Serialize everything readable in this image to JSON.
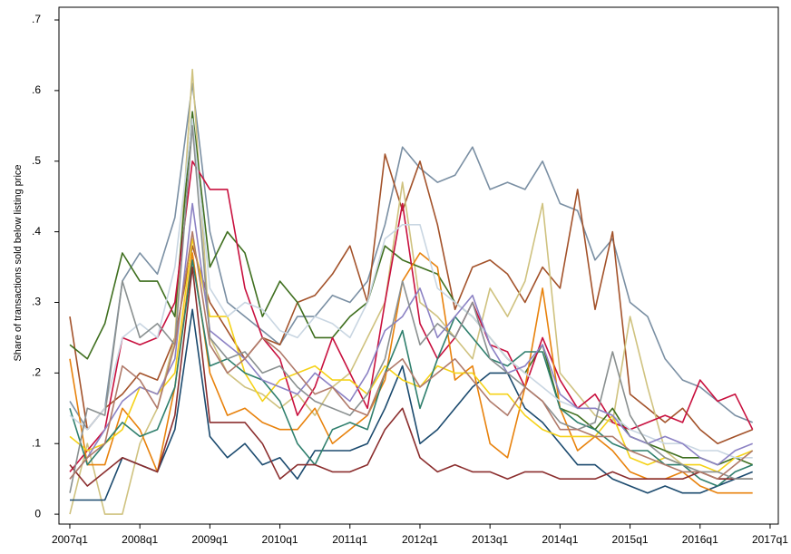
{
  "chart_data": {
    "type": "line",
    "y_label": "Share of transactions sold below listing price",
    "x": [
      2007,
      2007.25,
      2007.5,
      2007.75,
      2008,
      2008.25,
      2008.5,
      2008.75,
      2009,
      2009.25,
      2009.5,
      2009.75,
      2010,
      2010.25,
      2010.5,
      2010.75,
      2011,
      2011.25,
      2011.5,
      2011.75,
      2012,
      2012.25,
      2012.5,
      2012.75,
      2013,
      2013.25,
      2013.5,
      2013.75,
      2014,
      2014.25,
      2014.5,
      2014.75,
      2015,
      2015.25,
      2015.5,
      2015.75,
      2016,
      2016.25,
      2016.5,
      2016.75
    ],
    "xlim": [
      2006.845,
      2017.117
    ],
    "xticks": [
      {
        "value": 2007,
        "label": "2007q1"
      },
      {
        "value": 2008,
        "label": "2008q1"
      },
      {
        "value": 2009,
        "label": "2009q1"
      },
      {
        "value": 2010,
        "label": "2010q1"
      },
      {
        "value": 2011,
        "label": "2011q1"
      },
      {
        "value": 2012,
        "label": "2012q1"
      },
      {
        "value": 2013,
        "label": "2013q1"
      },
      {
        "value": 2014,
        "label": "2014q1"
      },
      {
        "value": 2015,
        "label": "2015q1"
      },
      {
        "value": 2016,
        "label": "2016q1"
      },
      {
        "value": 2017,
        "label": "2017q1"
      }
    ],
    "ylim": [
      -0.014,
      0.718
    ],
    "yticks": [
      0,
      {
        "value": 0.1,
        "label": ".1"
      },
      {
        "value": 0.2,
        "label": ".2"
      },
      {
        "value": 0.3,
        "label": ".3"
      },
      {
        "value": 0.4,
        "label": ".4"
      },
      {
        "value": 0.5,
        "label": ".5"
      },
      {
        "value": 0.6,
        "label": ".6"
      },
      {
        "value": 0.7,
        "label": ".7"
      }
    ],
    "grid": false,
    "series": [
      {
        "color": "#7a8fa3",
        "values": [
          0.16,
          0.12,
          0.15,
          0.33,
          0.37,
          0.34,
          0.42,
          0.61,
          0.4,
          0.3,
          0.28,
          0.26,
          0.24,
          0.28,
          0.28,
          0.31,
          0.3,
          0.33,
          0.41,
          0.52,
          0.49,
          0.47,
          0.48,
          0.52,
          0.46,
          0.47,
          0.46,
          0.5,
          0.44,
          0.43,
          0.36,
          0.39,
          0.3,
          0.28,
          0.22,
          0.19,
          0.18,
          0.16,
          0.14,
          0.13
        ]
      },
      {
        "color": "#a3522a",
        "values": [
          0.28,
          0.12,
          0.15,
          0.17,
          0.2,
          0.19,
          0.25,
          0.38,
          0.3,
          0.26,
          0.22,
          0.25,
          0.24,
          0.3,
          0.31,
          0.34,
          0.38,
          0.3,
          0.51,
          0.43,
          0.5,
          0.41,
          0.29,
          0.35,
          0.36,
          0.34,
          0.3,
          0.35,
          0.32,
          0.46,
          0.29,
          0.4,
          0.17,
          0.15,
          0.13,
          0.15,
          0.12,
          0.1,
          0.11,
          0.12
        ]
      },
      {
        "color": "#cfc27f",
        "values": [
          0.0,
          0.1,
          0.0,
          0.0,
          0.1,
          0.15,
          0.25,
          0.63,
          0.25,
          0.2,
          0.18,
          0.17,
          0.15,
          0.17,
          0.14,
          0.18,
          0.2,
          0.25,
          0.3,
          0.47,
          0.3,
          0.28,
          0.25,
          0.22,
          0.32,
          0.28,
          0.33,
          0.44,
          0.2,
          0.17,
          0.14,
          0.13,
          0.28,
          0.18,
          0.09,
          0.07,
          0.06,
          0.05,
          0.05,
          0.05
        ]
      },
      {
        "color": "#3f6f1f",
        "values": [
          0.24,
          0.22,
          0.27,
          0.37,
          0.33,
          0.33,
          0.28,
          0.57,
          0.35,
          0.4,
          0.37,
          0.28,
          0.33,
          0.3,
          0.25,
          0.25,
          0.28,
          0.3,
          0.38,
          0.36,
          0.35,
          0.34,
          0.3,
          0.28,
          0.25,
          0.22,
          0.2,
          0.24,
          0.15,
          0.14,
          0.12,
          0.15,
          0.11,
          0.1,
          0.09,
          0.08,
          0.08,
          0.07,
          0.08,
          0.07
        ]
      },
      {
        "color": "#c8103e",
        "values": [
          0.06,
          0.09,
          0.12,
          0.25,
          0.24,
          0.25,
          0.3,
          0.5,
          0.46,
          0.46,
          0.32,
          0.25,
          0.22,
          0.14,
          0.18,
          0.25,
          0.2,
          0.15,
          0.3,
          0.44,
          0.27,
          0.22,
          0.25,
          0.3,
          0.24,
          0.23,
          0.18,
          0.25,
          0.19,
          0.15,
          0.17,
          0.13,
          0.12,
          0.13,
          0.14,
          0.13,
          0.19,
          0.16,
          0.17,
          0.12
        ]
      },
      {
        "color": "#1b4a6e",
        "values": [
          0.02,
          0.02,
          0.02,
          0.08,
          0.07,
          0.06,
          0.12,
          0.29,
          0.11,
          0.08,
          0.1,
          0.07,
          0.08,
          0.05,
          0.09,
          0.09,
          0.09,
          0.1,
          0.15,
          0.21,
          0.1,
          0.12,
          0.15,
          0.18,
          0.2,
          0.2,
          0.15,
          0.13,
          0.1,
          0.07,
          0.07,
          0.05,
          0.04,
          0.03,
          0.04,
          0.03,
          0.03,
          0.04,
          0.05,
          0.06
        ]
      },
      {
        "color": "#e8820c",
        "values": [
          0.22,
          0.07,
          0.07,
          0.15,
          0.12,
          0.06,
          0.18,
          0.37,
          0.2,
          0.14,
          0.15,
          0.13,
          0.12,
          0.12,
          0.15,
          0.1,
          0.12,
          0.14,
          0.19,
          0.33,
          0.37,
          0.35,
          0.19,
          0.21,
          0.1,
          0.08,
          0.18,
          0.32,
          0.15,
          0.09,
          0.11,
          0.09,
          0.06,
          0.05,
          0.05,
          0.06,
          0.04,
          0.03,
          0.03,
          0.03
        ]
      },
      {
        "color": "#f5d218",
        "values": [
          0.11,
          0.09,
          0.1,
          0.12,
          0.18,
          0.17,
          0.2,
          0.39,
          0.28,
          0.28,
          0.2,
          0.16,
          0.19,
          0.2,
          0.21,
          0.19,
          0.19,
          0.17,
          0.21,
          0.19,
          0.18,
          0.21,
          0.2,
          0.2,
          0.17,
          0.17,
          0.14,
          0.12,
          0.11,
          0.11,
          0.11,
          0.14,
          0.08,
          0.07,
          0.08,
          0.07,
          0.07,
          0.06,
          0.08,
          0.09
        ]
      },
      {
        "color": "#2f7f6d",
        "values": [
          0.15,
          0.07,
          0.1,
          0.13,
          0.11,
          0.12,
          0.18,
          0.36,
          0.21,
          0.22,
          0.2,
          0.19,
          0.16,
          0.1,
          0.07,
          0.12,
          0.13,
          0.12,
          0.2,
          0.26,
          0.15,
          0.22,
          0.28,
          0.25,
          0.22,
          0.21,
          0.23,
          0.23,
          0.15,
          0.13,
          0.12,
          0.1,
          0.09,
          0.09,
          0.07,
          0.07,
          0.05,
          0.04,
          0.06,
          0.07
        ]
      },
      {
        "color": "#c9d6e2",
        "values": [
          0.14,
          0.12,
          0.15,
          0.25,
          0.27,
          0.25,
          0.35,
          0.56,
          0.32,
          0.28,
          0.3,
          0.29,
          0.26,
          0.25,
          0.28,
          0.27,
          0.25,
          0.3,
          0.39,
          0.41,
          0.41,
          0.32,
          0.3,
          0.28,
          0.25,
          0.22,
          0.2,
          0.18,
          0.16,
          0.15,
          0.15,
          0.14,
          0.12,
          0.11,
          0.1,
          0.1,
          0.09,
          0.09,
          0.08,
          0.08
        ]
      },
      {
        "color": "#8c82c4",
        "values": [
          0.05,
          0.08,
          0.12,
          0.16,
          0.18,
          0.17,
          0.22,
          0.44,
          0.26,
          0.24,
          0.22,
          0.19,
          0.18,
          0.17,
          0.2,
          0.18,
          0.16,
          0.2,
          0.26,
          0.28,
          0.32,
          0.25,
          0.28,
          0.31,
          0.24,
          0.2,
          0.21,
          0.24,
          0.17,
          0.15,
          0.15,
          0.14,
          0.11,
          0.1,
          0.11,
          0.1,
          0.08,
          0.07,
          0.09,
          0.1
        ]
      },
      {
        "color": "#8b2e2e",
        "values": [
          0.07,
          0.04,
          0.06,
          0.08,
          0.07,
          0.06,
          0.14,
          0.35,
          0.13,
          0.13,
          0.13,
          0.1,
          0.05,
          0.07,
          0.07,
          0.06,
          0.06,
          0.07,
          0.12,
          0.15,
          0.08,
          0.06,
          0.07,
          0.06,
          0.06,
          0.05,
          0.06,
          0.06,
          0.05,
          0.05,
          0.05,
          0.06,
          0.05,
          0.05,
          0.05,
          0.05,
          0.06,
          0.05,
          0.05,
          0.05
        ]
      },
      {
        "color": "#8a9090",
        "values": [
          0.03,
          0.15,
          0.14,
          0.33,
          0.25,
          0.27,
          0.24,
          0.55,
          0.25,
          0.22,
          0.23,
          0.2,
          0.21,
          0.18,
          0.16,
          0.15,
          0.14,
          0.17,
          0.22,
          0.33,
          0.24,
          0.27,
          0.25,
          0.3,
          0.22,
          0.2,
          0.18,
          0.16,
          0.13,
          0.12,
          0.13,
          0.23,
          0.14,
          0.1,
          0.08,
          0.07,
          0.06,
          0.06,
          0.05,
          0.05
        ]
      },
      {
        "color": "#b07a6a",
        "values": [
          0.05,
          0.08,
          0.1,
          0.21,
          0.19,
          0.15,
          0.24,
          0.4,
          0.24,
          0.2,
          0.22,
          0.25,
          0.23,
          0.2,
          0.17,
          0.18,
          0.15,
          0.14,
          0.2,
          0.22,
          0.18,
          0.2,
          0.22,
          0.19,
          0.16,
          0.14,
          0.18,
          0.16,
          0.12,
          0.12,
          0.11,
          0.11,
          0.09,
          0.08,
          0.07,
          0.06,
          0.06,
          0.05,
          0.07,
          0.09
        ]
      }
    ]
  }
}
